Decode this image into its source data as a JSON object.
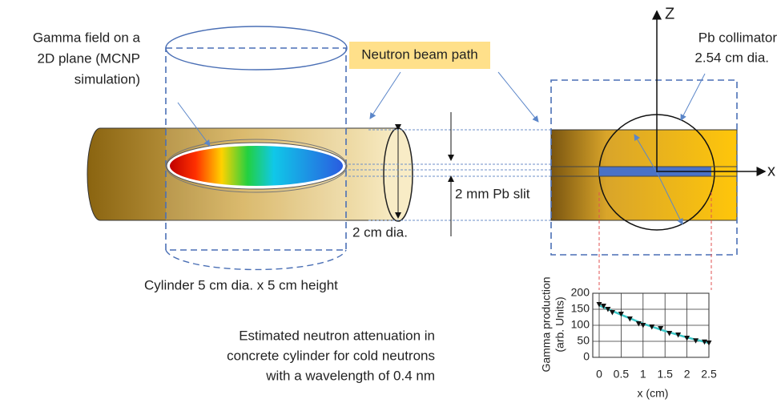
{
  "labels": {
    "gamma_field": [
      "Gamma field on a",
      "2D plane (MCNP",
      "simulation)"
    ],
    "beam_path": "Neutron beam path",
    "slit": "2 mm Pb slit",
    "beam_dia": "2 cm dia.",
    "cylinder": "Cylinder 5 cm dia. x 5 cm height",
    "attenuation": [
      "Estimated neutron attenuation in",
      "concrete cylinder for cold neutrons",
      "with a wavelength of 0.4 nm"
    ],
    "collimator": [
      "Pb collimator",
      "2.54 cm dia."
    ],
    "axis_z": "Z",
    "axis_x": "x"
  },
  "chart_data": {
    "type": "line",
    "x_label": "x (cm)",
    "y_label": [
      "Gamma production",
      "(arb. Units)"
    ],
    "xlim": [
      0,
      2.5
    ],
    "ylim": [
      0,
      200
    ],
    "xticks": [
      0,
      0.5,
      1,
      1.5,
      2,
      2.5
    ],
    "yticks": [
      0,
      50,
      100,
      150,
      200
    ],
    "grid": true,
    "series": [
      {
        "style": "markers",
        "color": "#111111",
        "x": [
          0,
          0.1,
          0.2,
          0.3,
          0.5,
          0.7,
          0.9,
          1.0,
          1.2,
          1.4,
          1.6,
          1.8,
          2.0,
          2.2,
          2.4,
          2.5
        ],
        "values": [
          165,
          160,
          150,
          140,
          135,
          120,
          105,
          100,
          95,
          90,
          75,
          70,
          60,
          52,
          48,
          45
        ]
      },
      {
        "style": "line",
        "color": "#3cc8c8",
        "x": [
          0,
          0.5,
          1,
          1.5,
          2,
          2.5
        ],
        "values": [
          162,
          133,
          105,
          82,
          62,
          45
        ]
      }
    ]
  }
}
